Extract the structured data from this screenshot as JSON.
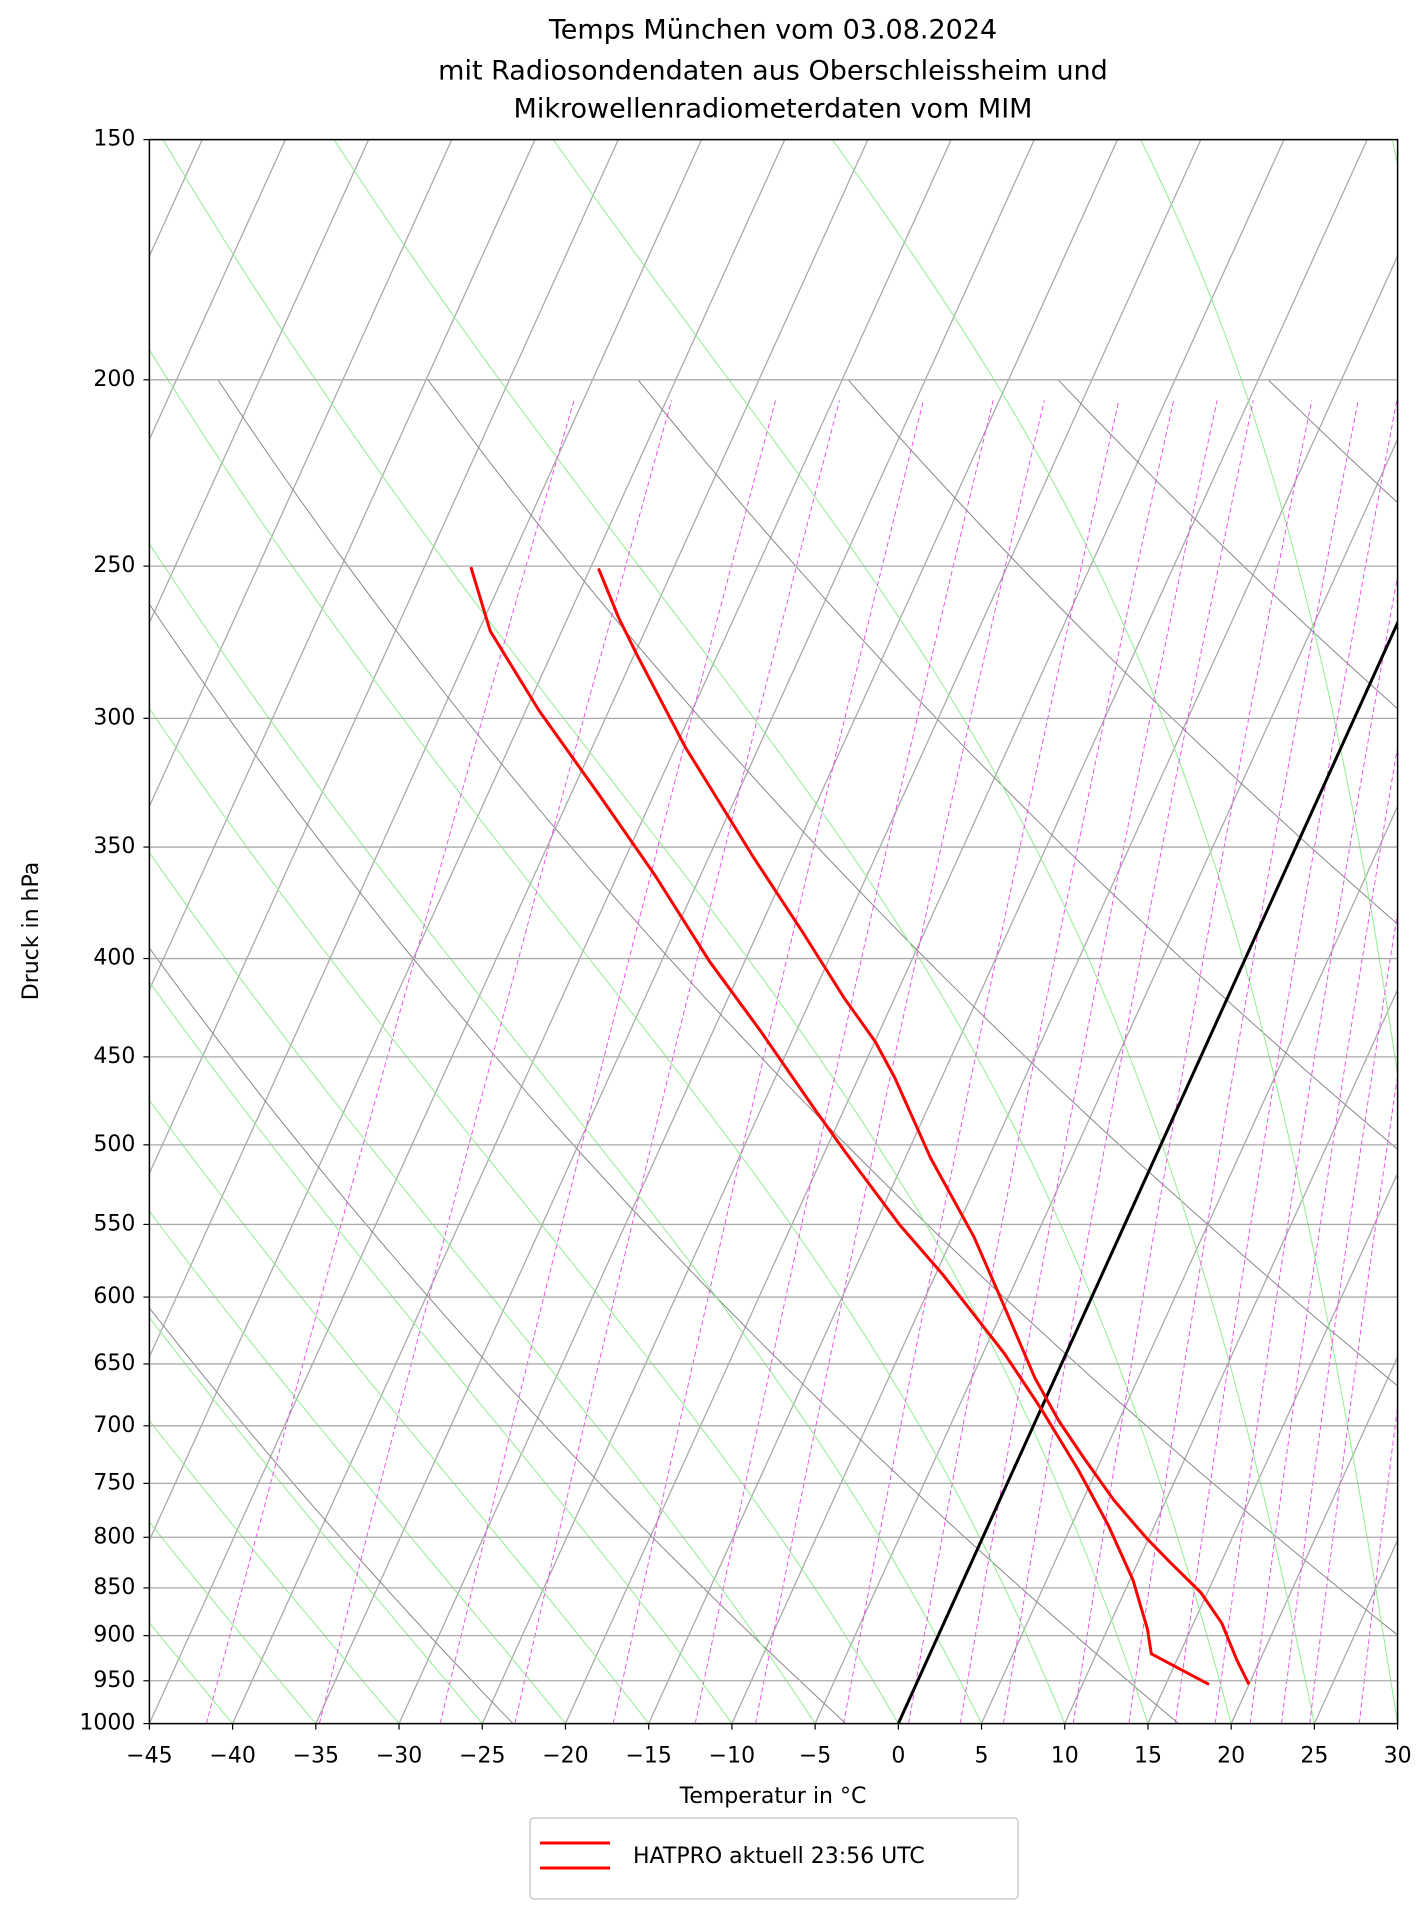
{
  "chart_data": {
    "type": "skewt",
    "title": [
      "Temps München vom 03.08.2024",
      "mit Radiosondendaten aus Oberschleissheim und",
      "Mikrowellenradiometerdaten vom MIM"
    ],
    "x_label": "Temperatur in °C",
    "y_label": "Druck in hPa",
    "xlim": [
      -45,
      30
    ],
    "xticks": [
      {
        "value": -45,
        "label": "−45"
      },
      {
        "value": -40,
        "label": "−40"
      },
      {
        "value": -35,
        "label": "−35"
      },
      {
        "value": -30,
        "label": "−30"
      },
      {
        "value": -25,
        "label": "−25"
      },
      {
        "value": -20,
        "label": "−20"
      },
      {
        "value": -15,
        "label": "−15"
      },
      {
        "value": -10,
        "label": "−10"
      },
      {
        "value": -5,
        "label": "−5"
      },
      0,
      5,
      10,
      15,
      20,
      25,
      30
    ],
    "ylim": [
      1000,
      150
    ],
    "log_y": true,
    "yticks": [
      150,
      200,
      250,
      300,
      350,
      400,
      450,
      500,
      550,
      600,
      650,
      700,
      750,
      800,
      850,
      900,
      950,
      1000
    ],
    "grid": true,
    "legend": "lower-center",
    "series": [
      {
        "name": "HATPRO aktuell 23:56 UTC",
        "color": "#ff0000",
        "x": [
          17.6,
          13.3,
          12.4,
          10.2,
          7.2,
          3.9,
          0.0,
          -3.7,
          -9.6,
          -13.5,
          -18.8,
          -21.8,
          -27.3,
          -32.1,
          -37.7,
          -43.2,
          -49.2,
          -54.3,
          -57.2
        ],
        "values": [
          954.1,
          919.8,
          893.2,
          842.3,
          788.4,
          738.0,
          685.9,
          642.1,
          583.7,
          550.4,
          504.0,
          478.8,
          435.2,
          401.5,
          362.3,
          329.3,
          297.2,
          270.2,
          250.3
        ]
      },
      {
        "color": "#ff0000",
        "x": [
          20.0,
          18.6,
          16.7,
          14.6,
          11.9,
          9.8,
          6.9,
          3.9,
          1.4,
          -1.2,
          -5.1,
          -8.7,
          -13.5,
          -17.8,
          -20.0,
          -23.0,
          -27.4,
          -32.3,
          -39.4,
          -44.8,
          -46.9,
          -49.5
        ],
        "values": [
          954.1,
          926.5,
          886.7,
          854.7,
          823.9,
          800.1,
          765.7,
          727.4,
          696.0,
          661.2,
          605.5,
          558.5,
          507.7,
          461.5,
          441.6,
          419.6,
          387.0,
          354.4,
          310.6,
          278.2,
          266.2,
          250.7
        ]
      }
    ]
  }
}
